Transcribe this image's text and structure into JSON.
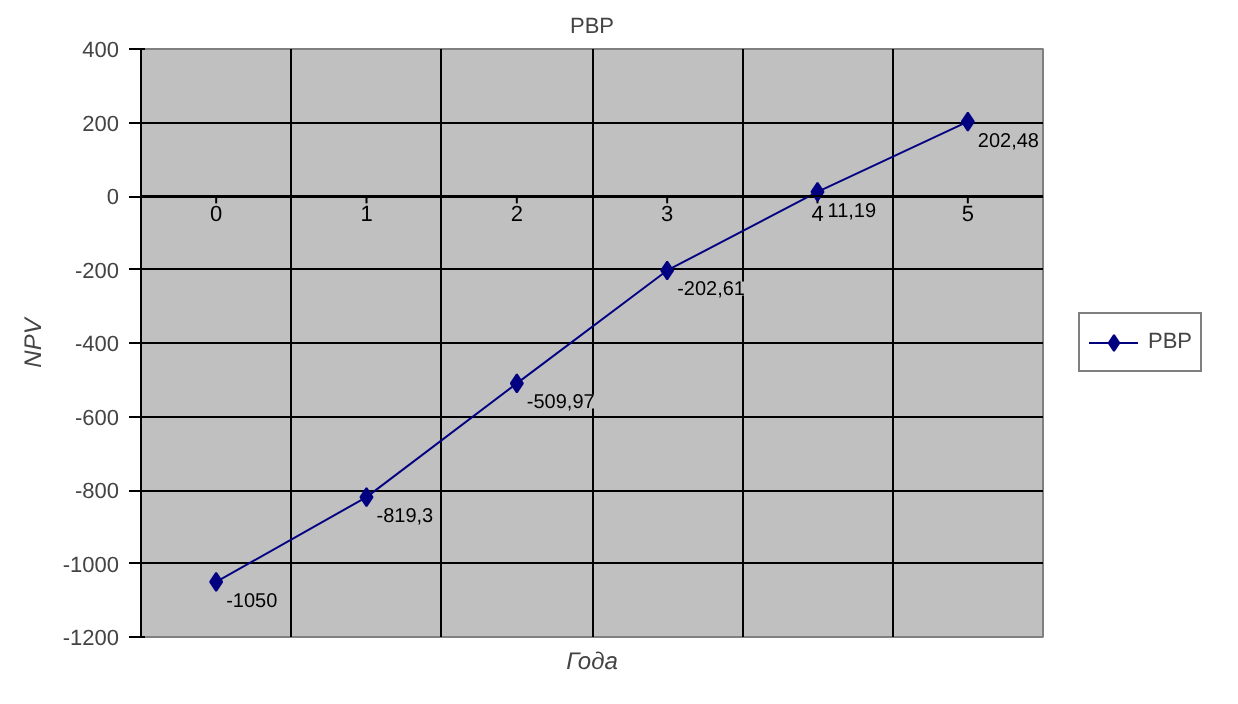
{
  "chart_data": {
    "type": "line",
    "title": "PBP",
    "xlabel": "Года",
    "ylabel": "NPV",
    "categories": [
      "0",
      "1",
      "2",
      "3",
      "4",
      "5"
    ],
    "series": [
      {
        "name": "PBP",
        "color": "#000080",
        "values": [
          -1050,
          -819.3,
          -509.97,
          -202.61,
          11.19,
          202.48
        ],
        "value_labels": [
          "-1050",
          "-819,3",
          "-509,97",
          "-202,61",
          "11,19",
          "202,48"
        ]
      }
    ],
    "ylim": [
      -1200,
      400
    ],
    "yticks": [
      -1200,
      -1000,
      -800,
      -600,
      -400,
      -200,
      0,
      200,
      400
    ],
    "grid": true,
    "legend": "right",
    "marker": "diamond",
    "line_style": "solid"
  }
}
